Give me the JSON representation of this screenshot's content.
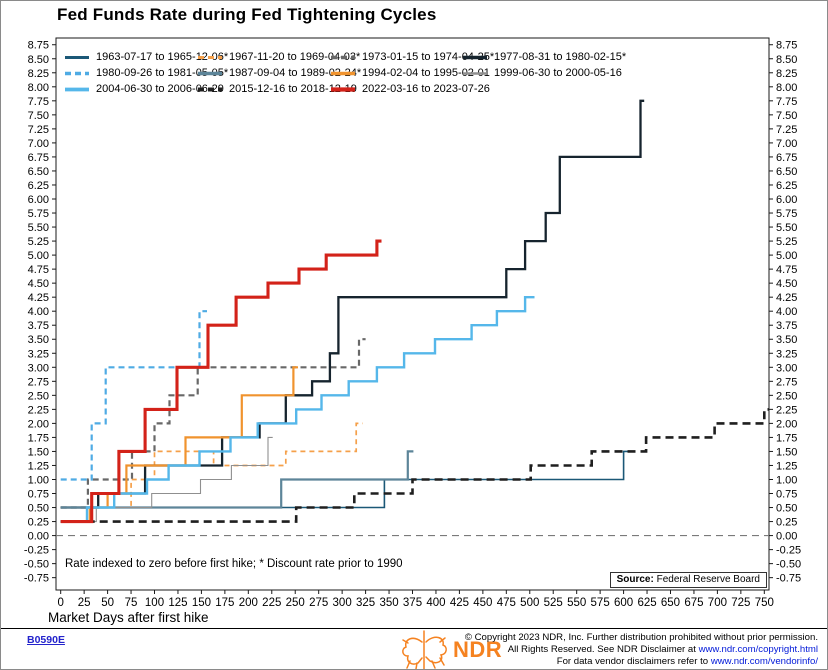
{
  "header": {
    "title": "Fed Funds Rate during Fed Tightening Cycles"
  },
  "chart_data": {
    "type": "line",
    "subtype": "step",
    "title": "Fed Funds Rate during Fed Tightening Cycles",
    "xlabel": "Market Days after first hike",
    "ylabel": "",
    "xlim": [
      -5,
      755
    ],
    "ylim": [
      -0.97,
      8.87
    ],
    "x_ticks": [
      0,
      25,
      50,
      75,
      100,
      125,
      150,
      175,
      200,
      225,
      250,
      275,
      300,
      325,
      350,
      375,
      400,
      425,
      450,
      475,
      500,
      525,
      550,
      575,
      600,
      625,
      650,
      675,
      700,
      725,
      750
    ],
    "y_ticks": [
      -0.75,
      -0.5,
      -0.25,
      0,
      0.25,
      0.5,
      0.75,
      1,
      1.25,
      1.5,
      1.75,
      2,
      2.25,
      2.5,
      2.75,
      3,
      3.25,
      3.5,
      3.75,
      4,
      4.25,
      4.5,
      4.75,
      5,
      5.25,
      5.5,
      5.75,
      6,
      6.25,
      6.5,
      6.75,
      7,
      7.25,
      7.5,
      7.75,
      8,
      8.25,
      8.5,
      8.75
    ],
    "grid": false,
    "zero_line": 0,
    "legend_position": "top-left-inside",
    "annotation": "Rate indexed to zero before first hike; * Discount rate prior to 1990",
    "source_label": "Source:",
    "source_text": "Federal Reserve Board",
    "series": [
      {
        "label": "1963-07-17 to 1965-12-06*",
        "color": "#1b5877",
        "style": "solid",
        "width": 1.6,
        "points": [
          [
            0,
            0.5
          ],
          [
            345,
            1.0
          ],
          [
            600,
            1.5
          ]
        ],
        "end": 606
      },
      {
        "label": "1967-11-20 to 1969-04-03*",
        "color": "#f5a04a",
        "style": "dashed",
        "width": 1.7,
        "points": [
          [
            0,
            0.5
          ],
          [
            75,
            1.0
          ],
          [
            100,
            1.5
          ],
          [
            163,
            1.25
          ],
          [
            240,
            1.5
          ],
          [
            315,
            2.0
          ]
        ],
        "end": 322
      },
      {
        "label": "1973-01-15 to 1974-04-25*",
        "color": "#686868",
        "style": "dashed",
        "width": 2.2,
        "points": [
          [
            0,
            0.5
          ],
          [
            29,
            1.0
          ],
          [
            76,
            1.5
          ],
          [
            100,
            2.0
          ],
          [
            116,
            2.5
          ],
          [
            146,
            3.0
          ],
          [
            318,
            3.5
          ]
        ],
        "end": 325
      },
      {
        "label": "1977-08-31 to 1980-02-15*",
        "color": "#16242e",
        "style": "solid",
        "width": 2.3,
        "points": [
          [
            0,
            0.5
          ],
          [
            40,
            0.75
          ],
          [
            90,
            1.25
          ],
          [
            172,
            1.75
          ],
          [
            212,
            2.0
          ],
          [
            240,
            2.5
          ],
          [
            268,
            2.75
          ],
          [
            287,
            3.25
          ],
          [
            296,
            4.25
          ],
          [
            475,
            4.75
          ],
          [
            495,
            5.25
          ],
          [
            517,
            5.75
          ],
          [
            532,
            6.75
          ],
          [
            618,
            7.75
          ]
        ],
        "end": 622
      },
      {
        "label": "1980-09-26 to 1981-05-05*",
        "color": "#4fabe4",
        "style": "dashed",
        "width": 2.2,
        "points": [
          [
            0,
            1.0
          ],
          [
            33,
            2.0
          ],
          [
            48,
            3.0
          ],
          [
            148,
            4.0
          ]
        ],
        "end": 156
      },
      {
        "label": "1987-09-04 to 1989-02-24*",
        "color": "#5d8599",
        "style": "solid",
        "width": 2.2,
        "points": [
          [
            0,
            0.5
          ],
          [
            235,
            1.0
          ],
          [
            370,
            1.5
          ]
        ],
        "end": 376
      },
      {
        "label": "1994-02-04 to 1995-02-01",
        "color": "#f0932e",
        "style": "solid",
        "width": 2.2,
        "points": [
          [
            0,
            0.25
          ],
          [
            31,
            0.5
          ],
          [
            50,
            0.75
          ],
          [
            70,
            1.25
          ],
          [
            133,
            1.75
          ],
          [
            193,
            2.5
          ],
          [
            248,
            3.0
          ]
        ],
        "end": 253
      },
      {
        "label": "1999-06-30 to 2000-05-16",
        "color": "#8f8f8f",
        "style": "solid",
        "width": 1.1,
        "points": [
          [
            0,
            0.25
          ],
          [
            38,
            0.5
          ],
          [
            97,
            0.75
          ],
          [
            149,
            1.0
          ],
          [
            182,
            1.25
          ],
          [
            221,
            1.75
          ]
        ],
        "end": 226
      },
      {
        "label": "2004-06-30 to 2006-06-29",
        "color": "#55b7ea",
        "style": "solid",
        "width": 2.4,
        "points": [
          [
            0,
            0.25
          ],
          [
            28,
            0.5
          ],
          [
            57,
            0.75
          ],
          [
            92,
            1.0
          ],
          [
            115,
            1.25
          ],
          [
            148,
            1.5
          ],
          [
            181,
            1.75
          ],
          [
            210,
            2.0
          ],
          [
            251,
            2.25
          ],
          [
            278,
            2.5
          ],
          [
            307,
            2.75
          ],
          [
            337,
            3.0
          ],
          [
            366,
            3.25
          ],
          [
            399,
            3.5
          ],
          [
            438,
            3.75
          ],
          [
            465,
            4.0
          ],
          [
            495,
            4.25
          ]
        ],
        "end": 505
      },
      {
        "label": "2015-12-16 to 2018-12-19",
        "color": "#1f1f1f",
        "style": "dashed",
        "width": 2.6,
        "points": [
          [
            0,
            0.25
          ],
          [
            251,
            0.5
          ],
          [
            313,
            0.75
          ],
          [
            375,
            1.0
          ],
          [
            501,
            1.25
          ],
          [
            566,
            1.5
          ],
          [
            624,
            1.75
          ],
          [
            697,
            2.0
          ],
          [
            750,
            2.25
          ]
        ],
        "end": 755
      },
      {
        "label": "2022-03-16 to 2023-07-26",
        "color": "#d32219",
        "style": "solid",
        "width": 3.1,
        "points": [
          [
            0,
            0.25
          ],
          [
            33,
            0.75
          ],
          [
            62,
            1.5
          ],
          [
            90,
            2.25
          ],
          [
            124,
            3.0
          ],
          [
            157,
            3.75
          ],
          [
            187,
            4.25
          ],
          [
            221,
            4.5
          ],
          [
            254,
            4.75
          ],
          [
            283,
            5.0
          ],
          [
            337,
            5.25
          ]
        ],
        "end": 342
      }
    ],
    "legend_rows": [
      [
        0,
        1,
        2,
        3
      ],
      [
        4,
        5,
        6,
        7
      ],
      [
        8,
        9,
        10
      ]
    ]
  },
  "footer": {
    "chart_id": "B0590E",
    "logo_text": "NDR",
    "copyright_lines": [
      {
        "text": "© Copyright 2023 NDR, Inc. Further distribution prohibited without prior permission.",
        "link": ""
      },
      {
        "text": "All Rights Reserved. See NDR Disclaimer at ",
        "link": "www.ndr.com/copyright.html"
      },
      {
        "text": "For data vendor disclaimers refer to ",
        "link": "www.ndr.com/vendorinfo/"
      }
    ]
  }
}
